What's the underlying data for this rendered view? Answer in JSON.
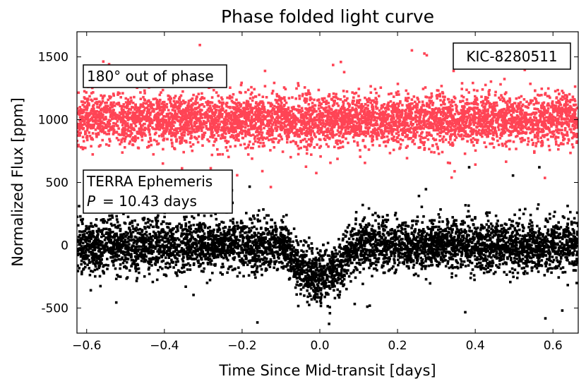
{
  "chart_data": {
    "type": "scatter",
    "title": "Phase folded light curve",
    "xlabel": "Time Since Mid-transit [days]",
    "ylabel": "Normalized Flux [ppm]",
    "xlim": [
      -0.625,
      0.665
    ],
    "ylim": [
      -700,
      1700
    ],
    "x_ticks": [
      -0.6,
      -0.4,
      -0.2,
      0.0,
      0.2,
      0.4,
      0.6
    ],
    "x_tick_labels": [
      "−0.6",
      "−0.4",
      "−0.2",
      "0.0",
      "0.2",
      "0.4",
      "0.6"
    ],
    "y_ticks": [
      -500,
      0,
      500,
      1000,
      1500
    ],
    "y_tick_labels": [
      "-500",
      "0",
      "500",
      "1000",
      "1500"
    ],
    "series": [
      {
        "name": "180° out of phase",
        "color": "#ff4455",
        "marker": "square",
        "approx_points": 5200,
        "baseline": 1000,
        "scatter_sigma": 100,
        "transit": null
      },
      {
        "name": "TERRA Ephemeris",
        "color": "#000000",
        "marker": "square",
        "approx_points": 5200,
        "baseline": 0,
        "scatter_sigma": 100,
        "transit": {
          "center": 0.0,
          "half_width": 0.09,
          "depth": -250
        }
      }
    ],
    "annotations": {
      "target_label": "KIC-8280511",
      "phase_label": "180° out of phase",
      "ephemeris_title": "TERRA Ephemeris",
      "period_symbol": "P",
      "period_value": "= 10.43 days"
    }
  }
}
